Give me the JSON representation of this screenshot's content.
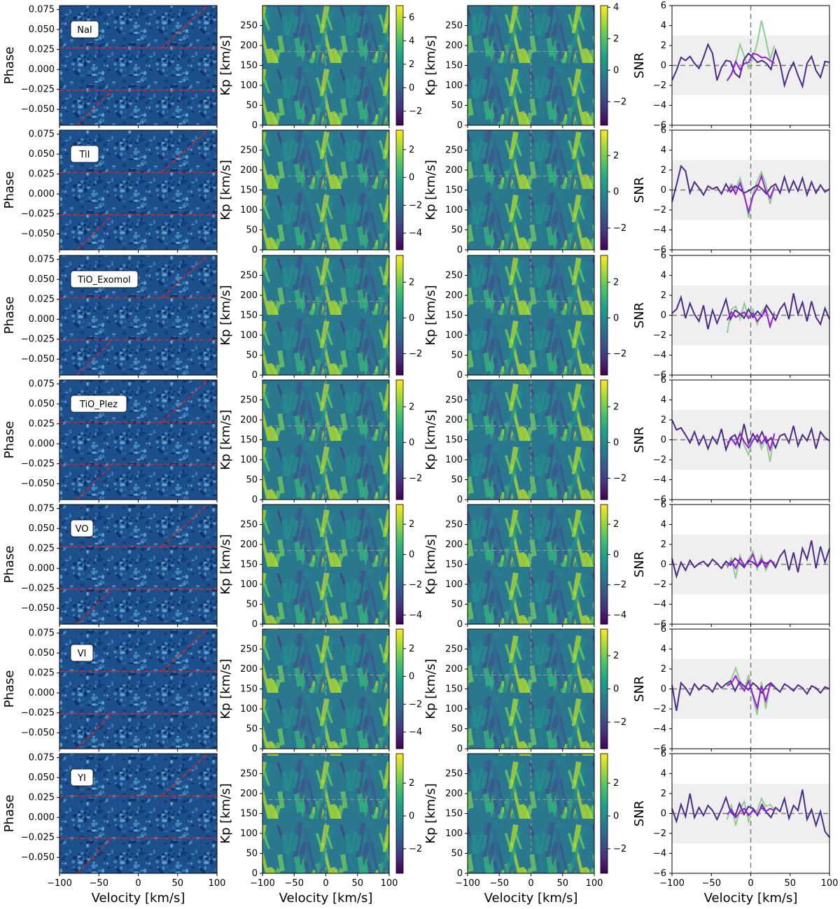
{
  "chart_data": {
    "type": "heatmap",
    "columns": [
      {
        "kind": "phase-velocity map",
        "xlabel": "Velocity [km/s]",
        "ylabel": "Phase",
        "xlim": [
          -100,
          100
        ],
        "ylim": [
          -0.07,
          0.08
        ],
        "xticks": [
          "−100",
          "−50",
          "0",
          "50",
          "100"
        ],
        "yticks": [
          "0.075",
          "0.050",
          "0.025",
          "0.000",
          "−0.025",
          "−0.050"
        ],
        "colormap": "blue",
        "transit_lines_color": "#e8231c",
        "transit_phase": [
          -0.026,
          0.027
        ]
      },
      {
        "kind": "Kp-Vsys map",
        "xlabel": "Velocity [km/s]",
        "ylabel": "Kp [km/s]",
        "xlim": [
          -100,
          100
        ],
        "ylim": [
          0,
          300
        ],
        "xticks": [
          "−100",
          "−50",
          "0",
          "50",
          "100"
        ],
        "yticks": [
          "250",
          "200",
          "150",
          "100",
          "50",
          "0"
        ],
        "colormap": "viridis",
        "marker": {
          "velocity": 0,
          "kp": 185
        }
      },
      {
        "kind": "Kp-Vsys map",
        "xlabel": "Velocity [km/s]",
        "ylabel": "Kp [km/s]",
        "xlim": [
          -100,
          100
        ],
        "ylim": [
          0,
          300
        ],
        "xticks": [
          "−100",
          "−50",
          "0",
          "50",
          "100"
        ],
        "yticks": [
          "250",
          "200",
          "150",
          "100",
          "50",
          "0"
        ],
        "colormap": "viridis",
        "marker": {
          "velocity": 0,
          "kp": 185
        }
      },
      {
        "kind": "SNR line",
        "xlabel": "Velocity [km/s]",
        "ylabel": "SNR",
        "xlim": [
          -100,
          100
        ],
        "ylim": [
          -6,
          6
        ],
        "xticks": [
          "−100",
          "−50",
          "0",
          "50",
          "100"
        ],
        "yticks": [
          "6",
          "4",
          "2",
          "0",
          "−2",
          "−4",
          "−6"
        ],
        "band": [
          -3,
          3
        ],
        "colors": {
          "main": "#4b2a8a",
          "highlight": "#9b19e0",
          "alt": "#8fcc8f"
        }
      }
    ],
    "rows": [
      {
        "species": "NaI",
        "cb2": {
          "ticks": [
            "6",
            "4",
            "2",
            "0",
            "−2"
          ],
          "range": [
            -3.2,
            7
          ]
        },
        "cb3": {
          "ticks": [
            "4",
            "2",
            "0",
            "−2"
          ],
          "range": [
            -3.5,
            4.1
          ]
        },
        "snr_main": [
          -1.5,
          -0.5,
          0.8,
          0.5,
          0.9,
          0.2,
          -0.3,
          0.8,
          2.1,
          1.2,
          -1.5,
          -0.2,
          0.5,
          0.4,
          -0.8,
          -1.2,
          0.6,
          1.2,
          0.8,
          0.3,
          0.5,
          0.2,
          -0.4,
          1.5,
          0.2,
          -2.0,
          -0.6,
          0.3,
          -1.0,
          -2.1,
          0.2,
          0.9,
          -0.5,
          -1.2,
          0.4,
          0.3
        ],
        "snr_highlight": [
          -1.5,
          -0.9,
          0.4,
          -0.4,
          0.2,
          0.3,
          1.2,
          1.1,
          0.8,
          0.8,
          0.5,
          0.2
        ],
        "snr_alt": [
          -1.6,
          -0.8,
          0.3,
          2.1,
          0.9,
          -0.3,
          0.8,
          2.2,
          4.5,
          2.6,
          0.6,
          2.0
        ]
      },
      {
        "species": "TiI",
        "cb2": {
          "ticks": [
            "2",
            "0",
            "−2",
            "−4"
          ],
          "range": [
            -5.2,
            3.4
          ]
        },
        "cb3": {
          "ticks": [
            "2",
            "0",
            "−2"
          ],
          "range": [
            -3.2,
            3.4
          ]
        },
        "snr_main": [
          -1.2,
          0.5,
          2.4,
          1.9,
          -0.3,
          0.8,
          0.2,
          -0.5,
          0.4,
          0.1,
          0.3,
          -0.4,
          0.6,
          -0.2,
          0.4,
          0.1,
          -0.3,
          -0.1,
          0.2,
          0.5,
          0.1,
          -0.4,
          0.3,
          0.6,
          -0.3,
          1.3,
          -0.2,
          0.9,
          -0.1,
          1.2,
          -0.5,
          0.8,
          -0.3,
          0.5,
          -0.2,
          0.1
        ],
        "snr_highlight": [
          -0.2,
          0.4,
          -0.4,
          0.7,
          -0.6,
          -2.2,
          -0.6,
          0.2,
          1.4,
          -0.1,
          -0.8,
          0.3
        ],
        "snr_alt": [
          -0.1,
          0.6,
          0.1,
          1.2,
          -0.3,
          -2.8,
          -0.4,
          0.9,
          1.8,
          0.6,
          -1.4,
          0.4
        ]
      },
      {
        "species": "TiO_Exomol",
        "cb2": {
          "ticks": [
            "2",
            "0",
            "−2"
          ],
          "range": [
            -3.2,
            3.5
          ]
        },
        "cb3": {
          "ticks": [
            "2",
            "0",
            "−2"
          ],
          "range": [
            -3.2,
            3.5
          ]
        },
        "snr_main": [
          0.2,
          0.6,
          1.8,
          -0.3,
          1.2,
          0.1,
          -0.6,
          1.0,
          -1.4,
          0.5,
          -0.8,
          0.3,
          1.6,
          -0.4,
          0.5,
          0.2,
          -0.3,
          0.6,
          -0.2,
          0.4,
          -0.1,
          1.0,
          0.3,
          -0.5,
          0.6,
          1.2,
          -0.4,
          2.2,
          0.1,
          1.3,
          -0.6,
          1.4,
          -0.2,
          -0.9,
          0.7,
          -0.4
        ],
        "snr_highlight": [
          -0.5,
          0.3,
          -0.2,
          0.1,
          0.3,
          -0.3,
          0.2,
          -0.6,
          -0.1,
          0.5,
          -1.1,
          0.2
        ],
        "snr_alt": [
          -1.8,
          0.6,
          0.9,
          -0.4,
          1.2,
          -0.3,
          0.6,
          -0.9,
          0.3,
          0.9,
          -1.3,
          0.4
        ]
      },
      {
        "species": "TiO_Plez",
        "cb2": {
          "ticks": [
            "2",
            "0",
            "−2"
          ],
          "range": [
            -3.2,
            3.5
          ]
        },
        "cb3": {
          "ticks": [
            "2",
            "0",
            "−2"
          ],
          "range": [
            -3.2,
            3.5
          ]
        },
        "snr_main": [
          2.0,
          1.0,
          1.2,
          0.5,
          -0.3,
          0.8,
          -0.5,
          0.4,
          -0.9,
          0.3,
          -0.4,
          1.1,
          -1.0,
          0.2,
          0.5,
          -0.7,
          1.6,
          -0.4,
          0.6,
          -0.2,
          0.8,
          -0.3,
          0.2,
          -0.8,
          0.4,
          0.6,
          -0.3,
          1.4,
          -0.6,
          0.5,
          -0.1,
          1.1,
          -0.9,
          0.8,
          0.2,
          -0.1
        ],
        "snr_highlight": [
          -0.3,
          0.1,
          -0.5,
          0.6,
          -0.2,
          -0.8,
          -0.1,
          0.5,
          -0.4,
          0.3,
          -1.0,
          0.6
        ],
        "snr_alt": [
          -0.6,
          0.2,
          -0.4,
          0.8,
          -0.6,
          -1.5,
          0.1,
          0.4,
          -0.9,
          0.1,
          -2.2,
          0.7
        ]
      },
      {
        "species": "VO",
        "cb2": {
          "ticks": [
            "2",
            "0",
            "−2",
            "−4"
          ],
          "range": [
            -4.6,
            3.3
          ]
        },
        "cb3": {
          "ticks": [
            "2",
            "0",
            "−2",
            "−4"
          ],
          "range": [
            -4.6,
            3.3
          ]
        },
        "snr_main": [
          0.6,
          -1.2,
          0.2,
          -0.6,
          0.4,
          -0.3,
          0.1,
          0.3,
          -0.2,
          0.5,
          0.1,
          -0.4,
          0.3,
          -0.1,
          0.6,
          0.2,
          -0.3,
          0.4,
          0.2,
          -0.2,
          0.3,
          0.1,
          0.4,
          -0.3,
          0.8,
          1.4,
          -0.6,
          1.2,
          -0.8,
          1.6,
          0.5,
          2.4,
          -0.4,
          1.8,
          0.2,
          1.6
        ],
        "snr_highlight": [
          -0.2,
          0.3,
          -0.4,
          0.6,
          -0.1,
          0.2,
          1.0,
          -0.2,
          0.5,
          -0.3,
          0.4,
          0.1
        ],
        "snr_alt": [
          -0.4,
          0.6,
          -1.4,
          0.9,
          -0.3,
          0.5,
          1.3,
          -0.5,
          0.9,
          -0.6,
          0.3,
          0.2
        ]
      },
      {
        "species": "VI",
        "cb2": {
          "ticks": [
            "2",
            "0",
            "−2",
            "−4"
          ],
          "range": [
            -5.2,
            3.4
          ]
        },
        "cb3": {
          "ticks": [
            "2",
            "0",
            "−2"
          ],
          "range": [
            -3.6,
            3.6
          ]
        },
        "snr_main": [
          0.4,
          -2.2,
          0.6,
          0.1,
          -0.6,
          0.5,
          -0.1,
          0.4,
          0.2,
          -0.3,
          0.6,
          0.1,
          0.5,
          0.8,
          -0.2,
          0.7,
          0.3,
          -0.1,
          0.6,
          0.2,
          -0.4,
          0.3,
          0.6,
          0.1,
          -0.3,
          0.5,
          0.2,
          -0.2,
          0.4,
          0.1,
          -0.5,
          0.3,
          0.1,
          -0.4,
          0.2,
          0.0
        ],
        "snr_highlight": [
          0.3,
          0.6,
          1.3,
          0.4,
          -0.2,
          0.8,
          -0.6,
          -1.9,
          0.3,
          -1.2,
          0.4,
          0.2
        ],
        "snr_alt": [
          0.4,
          1.0,
          2.1,
          0.8,
          -0.1,
          1.4,
          -0.9,
          -2.6,
          0.7,
          -2.0,
          0.6,
          0.3
        ]
      },
      {
        "species": "YI",
        "cb2": {
          "ticks": [
            "2",
            "0",
            "−2"
          ],
          "range": [
            -3.5,
            3.8
          ]
        },
        "cb3": {
          "ticks": [
            "2",
            "0",
            "−2"
          ],
          "range": [
            -3.5,
            3.8
          ]
        },
        "snr_main": [
          0.5,
          -0.8,
          0.9,
          -0.3,
          2.0,
          -0.4,
          0.6,
          -0.2,
          0.8,
          0.3,
          -0.6,
          0.4,
          1.6,
          0.2,
          -0.3,
          1.0,
          -0.1,
          0.7,
          0.5,
          -0.2,
          0.9,
          0.1,
          -0.4,
          0.6,
          0.2,
          1.5,
          -0.5,
          0.8,
          0.3,
          2.4,
          -0.6,
          0.4,
          -1.2,
          0.2,
          -1.8,
          -2.4
        ],
        "snr_highlight": [
          -0.1,
          0.4,
          -0.4,
          0.2,
          0.5,
          -0.2,
          0.3,
          -0.1,
          0.6,
          0.2,
          0.5,
          0.3
        ],
        "snr_alt": [
          -0.6,
          0.8,
          -1.2,
          0.4,
          1.2,
          -0.8,
          0.5,
          0.2,
          1.5,
          0.7,
          0.9,
          0.4
        ]
      }
    ]
  }
}
